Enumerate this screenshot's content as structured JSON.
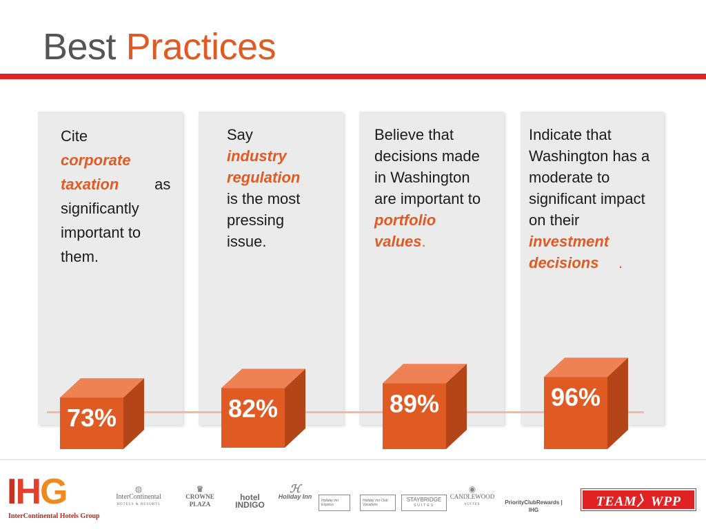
{
  "title": {
    "word1": "Best",
    "word2": "Practices"
  },
  "chart_data": {
    "type": "bar",
    "categories": [
      "Cite corporate taxation as significantly important to them.",
      "Say industry regulation is the most pressing issue.",
      "Believe that decisions made in Washington are important to portfolio values.",
      "Indicate that Washington has a moderate to significant impact on their investment decisions."
    ],
    "values": [
      73,
      82,
      89,
      96
    ],
    "labels": [
      "73%",
      "82%",
      "89%",
      "96%"
    ],
    "ylim": [
      0,
      100
    ],
    "grid": false,
    "colors": {
      "front": "#e05a24",
      "top": "#ef8255",
      "side": "#b44518"
    }
  },
  "panels": [
    {
      "pre": "Cite",
      "em": "corporate taxation",
      "post1": "as",
      "post2": "significantly important to them."
    },
    {
      "pre": "Say",
      "em": "industry regulation",
      "post": "is the most pressing issue."
    },
    {
      "pre": "Believe that decisions made in Washington are important to",
      "em": "portfolio values",
      "dot": "."
    },
    {
      "pre": "Indicate that Washington has a moderate to significant impact on their",
      "em": "investment decisions",
      "dot": "."
    }
  ],
  "footer": {
    "logo": {
      "i": "I",
      "h": "H",
      "g": "G",
      "tagline": "InterContinental Hotels Group"
    },
    "brands": {
      "intercontinental": "InterContinental",
      "intercontinental_sub": "HOTELS & RESORTS",
      "crowne": "CROWNE PLAZA",
      "indigo": "hotel INDIGO",
      "holiday": "Holiday Inn",
      "express": "Holiday Inn Express",
      "club": "Holiday Inn Club Vacations",
      "staybridge": "STAYBRIDGE",
      "staybridge_sub": "SUITES",
      "candlewood": "CANDLEWOOD",
      "candlewood_sub": "SUITES",
      "priority": "PriorityClubRewards | IHG"
    },
    "team": "TEAM〉WPP"
  }
}
